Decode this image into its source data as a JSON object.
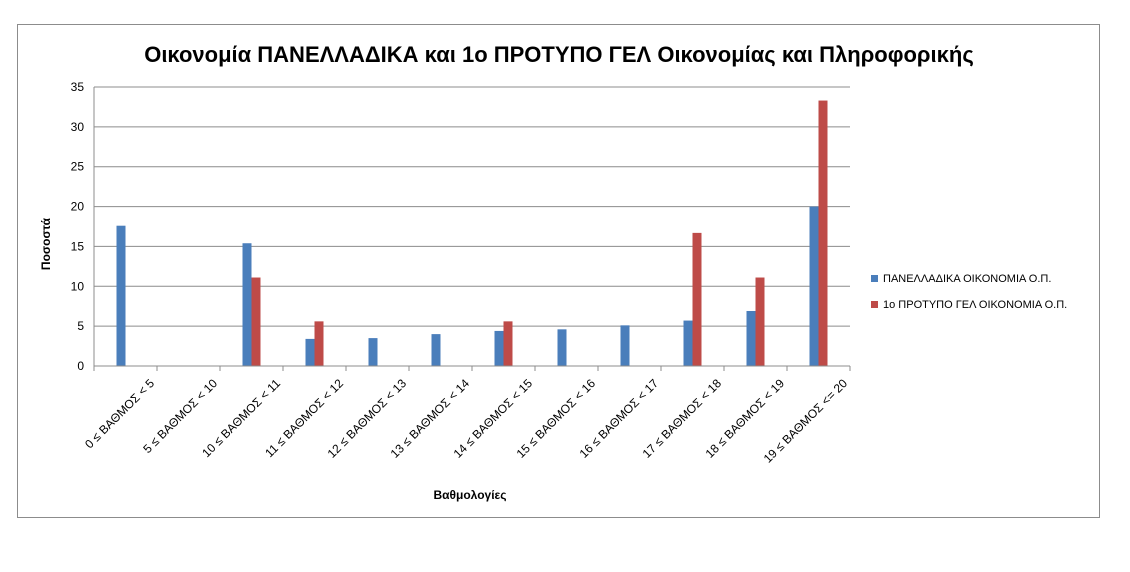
{
  "chart_data": {
    "type": "bar",
    "title": "Οικονομία ΠΑΝΕΛΛΑΔΙΚΑ και 1ο ΠΡΟΤΥΠΟ ΓΕΛ Οικονομίας και Πληροφορικής",
    "xlabel": "Βαθμολογίες",
    "ylabel": "Ποσοστά",
    "ylim": [
      0,
      35
    ],
    "yticks": [
      0,
      5,
      10,
      15,
      20,
      25,
      30,
      35
    ],
    "grid": true,
    "legend_position": "right",
    "categories": [
      "0 ≤ ΒΑΘΜΟΣ < 5",
      "5 ≤ ΒΑΘΜΟΣ < 10",
      "10 ≤ ΒΑΘΜΟΣ < 11",
      "11 ≤ ΒΑΘΜΟΣ < 12",
      "12 ≤ ΒΑΘΜΟΣ < 13",
      "13 ≤ ΒΑΘΜΟΣ < 14",
      "14 ≤ ΒΑΘΜΟΣ < 15",
      "15 ≤ ΒΑΘΜΟΣ < 16",
      "16 ≤ ΒΑΘΜΟΣ < 17",
      "17 ≤ ΒΑΘΜΟΣ < 18",
      "18 ≤ ΒΑΘΜΟΣ < 19",
      "19 ≤ ΒΑΘΜΟΣ <= 20"
    ],
    "series": [
      {
        "name": "ΠΑΝΕΛΛΑΔΙΚΑ ΟΙΚΟΝΟΜΙΑ Ο.Π.",
        "color": "#4a7ebb",
        "values": [
          17.6,
          0,
          15.4,
          3.4,
          3.5,
          4.0,
          4.4,
          4.6,
          5.1,
          5.7,
          6.9,
          20.0
        ]
      },
      {
        "name": "1ο ΠΡΟΤΥΠΟ ΓΕΛ ΟΙΚΟΝΟΜΙΑ Ο.Π.",
        "color": "#be4b48",
        "values": [
          0,
          0,
          11.1,
          5.6,
          0,
          0,
          5.6,
          0,
          0,
          16.7,
          11.1,
          33.3
        ]
      }
    ]
  }
}
